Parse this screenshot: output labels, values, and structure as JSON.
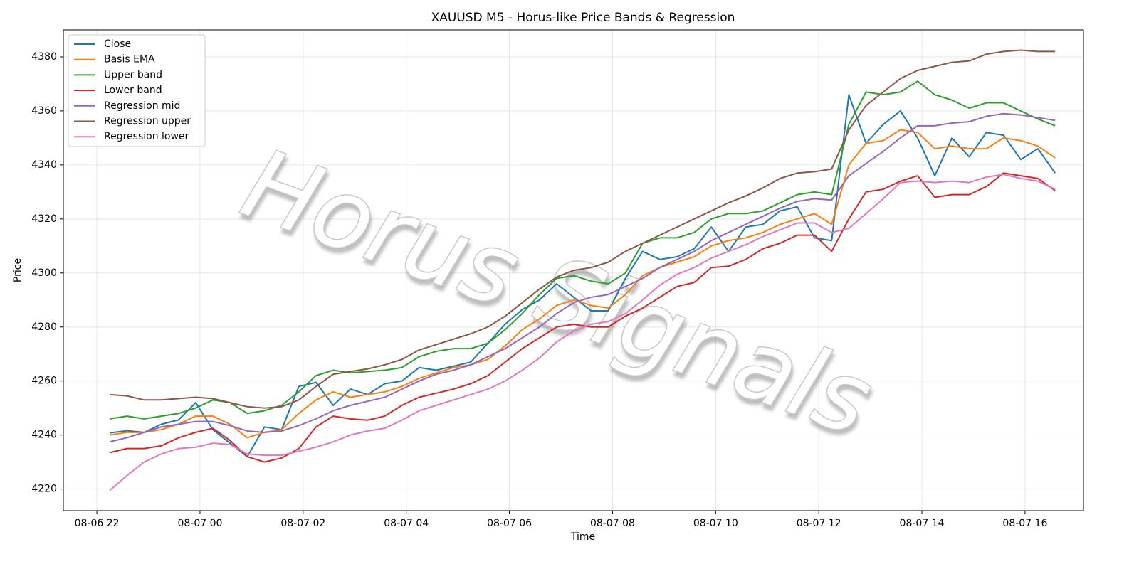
{
  "chart_data": {
    "type": "line",
    "title": "XAUUSD M5 - Horus-like Price Bands & Regression",
    "xlabel": "Time",
    "ylabel": "Price",
    "watermark": "Horus Signals",
    "x": [
      "08-06 22:15",
      "08-06 22:35",
      "08-06 22:55",
      "08-06 23:15",
      "08-06 23:35",
      "08-06 23:55",
      "08-07 00:15",
      "08-07 00:35",
      "08-07 00:55",
      "08-07 01:15",
      "08-07 01:35",
      "08-07 01:55",
      "08-07 02:15",
      "08-07 02:35",
      "08-07 02:55",
      "08-07 03:15",
      "08-07 03:35",
      "08-07 03:55",
      "08-07 04:15",
      "08-07 04:35",
      "08-07 04:55",
      "08-07 05:15",
      "08-07 05:35",
      "08-07 05:55",
      "08-07 06:15",
      "08-07 06:35",
      "08-07 06:55",
      "08-07 07:15",
      "08-07 07:35",
      "08-07 07:55",
      "08-07 08:15",
      "08-07 08:35",
      "08-07 08:55",
      "08-07 09:15",
      "08-07 09:35",
      "08-07 09:55",
      "08-07 10:15",
      "08-07 10:35",
      "08-07 10:55",
      "08-07 11:15",
      "08-07 11:35",
      "08-07 11:55",
      "08-07 12:15",
      "08-07 12:35",
      "08-07 12:55",
      "08-07 13:15",
      "08-07 13:35",
      "08-07 13:55",
      "08-07 14:15",
      "08-07 14:35",
      "08-07 14:55",
      "08-07 15:15",
      "08-07 15:35",
      "08-07 15:55",
      "08-07 16:15",
      "08-07 16:35"
    ],
    "series": [
      {
        "name": "Close",
        "color": "#1f77b4",
        "values": [
          4240.8,
          4241.6,
          4241,
          4244,
          4245.6,
          4252,
          4242,
          4237,
          4232,
          4243,
          4242,
          4258,
          4259.5,
          4251,
          4257,
          4255,
          4259,
          4260,
          4265,
          4264,
          4265.5,
          4267,
          4274,
          4281,
          4286.5,
          4290,
          4296,
          4291,
          4286,
          4286,
          4298,
          4308,
          4305,
          4306,
          4309,
          4317,
          4308,
          4317,
          4318,
          4323,
          4324.5,
          4313,
          4312,
          4366,
          4348,
          4355,
          4360,
          4350,
          4336,
          4350,
          4343,
          4352,
          4351,
          4342,
          4346,
          4337
        ]
      },
      {
        "name": "Basis EMA",
        "color": "#ff7f0e",
        "values": [
          4240,
          4241,
          4241,
          4242,
          4244,
          4247,
          4247,
          4244,
          4239,
          4241,
          4242,
          4248,
          4253,
          4256,
          4254,
          4255,
          4256,
          4258,
          4261,
          4263,
          4265,
          4266,
          4268,
          4273,
          4279,
          4283,
          4288,
          4290,
          4288,
          4287,
          4292,
          4299,
          4302,
          4304,
          4306,
          4310,
          4312,
          4313,
          4315,
          4318,
          4320,
          4322,
          4318,
          4340,
          4348,
          4349,
          4353,
          4352,
          4346,
          4347,
          4346,
          4346,
          4350,
          4349,
          4347,
          4342.6
        ]
      },
      {
        "name": "Upper band",
        "color": "#2ca02c",
        "values": [
          4246,
          4247,
          4246,
          4247,
          4248,
          4250,
          4253,
          4252,
          4248,
          4249,
          4251,
          4256,
          4262,
          4264,
          4263,
          4263.5,
          4264,
          4265,
          4269,
          4271,
          4272,
          4272,
          4274,
          4279,
          4285,
          4292,
          4298,
          4299,
          4297,
          4296,
          4300,
          4311,
          4313,
          4313,
          4315,
          4320,
          4322,
          4322,
          4323,
          4326,
          4329,
          4330,
          4329,
          4355,
          4367,
          4366,
          4367,
          4371,
          4366,
          4364,
          4361,
          4363,
          4363,
          4360,
          4357,
          4354.5
        ]
      },
      {
        "name": "Lower band",
        "color": "#d62728",
        "values": [
          4233.5,
          4235,
          4235,
          4236,
          4239,
          4241,
          4242.5,
          4238,
          4232,
          4230,
          4231.5,
          4235,
          4243,
          4247,
          4246,
          4245.5,
          4247,
          4251,
          4254,
          4255.5,
          4257,
          4259,
          4262,
          4267,
          4272,
          4276,
          4280,
          4281,
          4280,
          4280,
          4284,
          4287,
          4291,
          4295,
          4296.5,
          4302,
          4302.5,
          4305,
          4309,
          4311,
          4314,
          4314,
          4308,
          4320,
          4330,
          4331,
          4334,
          4336,
          4328,
          4329,
          4329,
          4332,
          4337,
          4336,
          4335,
          4330.5
        ]
      },
      {
        "name": "Regression mid",
        "color": "#9467bd",
        "values": [
          4237.5,
          4239,
          4241,
          4243,
          4244,
          4245,
          4245,
          4243.5,
          4241.5,
          4241,
          4241.5,
          4243.5,
          4246,
          4249,
          4251,
          4252.5,
          4254,
          4257,
          4260,
          4262.5,
          4264,
          4266,
          4269,
          4272,
          4276,
          4280,
          4285,
          4289,
          4291,
          4292,
          4295,
          4298,
          4302,
          4305,
          4308,
          4312,
          4315,
          4318,
          4321,
          4324,
          4326.5,
          4327.5,
          4327,
          4336,
          4340.5,
          4345,
          4350,
          4354.5,
          4354.5,
          4355.5,
          4356,
          4358,
          4359,
          4358.5,
          4357.5,
          4356.5
        ]
      },
      {
        "name": "Regression upper",
        "color": "#8c564b",
        "values": [
          4255,
          4254.5,
          4253,
          4253,
          4253.5,
          4254,
          4253.5,
          4252,
          4250.5,
          4250,
          4250.5,
          4253,
          4258,
          4262.5,
          4263.5,
          4264.5,
          4266,
          4268,
          4271.5,
          4273.5,
          4275.5,
          4277.5,
          4280,
          4284,
          4289,
          4294,
          4298.5,
          4301,
          4302,
          4304,
          4308,
          4311,
          4314,
          4317,
          4320,
          4323,
          4326,
          4328.5,
          4331.5,
          4335,
          4337,
          4337.5,
          4338.5,
          4353,
          4362,
          4367,
          4372,
          4375,
          4376.5,
          4378,
          4378.5,
          4381,
          4382,
          4382.5,
          4382,
          4382
        ]
      },
      {
        "name": "Regression lower",
        "color": "#e377c2",
        "values": [
          4219.5,
          4225,
          4230,
          4233,
          4235,
          4235.5,
          4237,
          4236.5,
          4233,
          4232.5,
          4232.5,
          4234,
          4235.5,
          4237.5,
          4240,
          4241.5,
          4242.5,
          4245.5,
          4249,
          4251,
          4253,
          4255,
          4257,
          4260,
          4264,
          4268.5,
          4274.5,
          4278.5,
          4281,
          4282,
          4285,
          4290,
          4295.5,
          4299.5,
          4302,
          4305.5,
          4308,
          4310.5,
          4313.5,
          4316,
          4318.5,
          4318.5,
          4315,
          4316.5,
          4322,
          4327.5,
          4333.5,
          4334,
          4333.5,
          4334,
          4333.5,
          4335.5,
          4336.5,
          4335,
          4334,
          4331
        ]
      }
    ],
    "xlim": [
      "08-06 21:21",
      "08-07 17:08"
    ],
    "xticks": [
      {
        "value": "08-06 22:00",
        "label": "08-06 22"
      },
      {
        "value": "08-07 00:00",
        "label": "08-07 00"
      },
      {
        "value": "08-07 02:00",
        "label": "08-07 02"
      },
      {
        "value": "08-07 04:00",
        "label": "08-07 04"
      },
      {
        "value": "08-07 06:00",
        "label": "08-07 06"
      },
      {
        "value": "08-07 08:00",
        "label": "08-07 08"
      },
      {
        "value": "08-07 10:00",
        "label": "08-07 10"
      },
      {
        "value": "08-07 12:00",
        "label": "08-07 12"
      },
      {
        "value": "08-07 14:00",
        "label": "08-07 14"
      },
      {
        "value": "08-07 16:00",
        "label": "08-07 16"
      }
    ],
    "ylim": [
      4212,
      4390
    ],
    "yticks": [
      4220,
      4240,
      4260,
      4280,
      4300,
      4320,
      4340,
      4360,
      4380
    ],
    "grid": true,
    "legend": "upper left"
  }
}
